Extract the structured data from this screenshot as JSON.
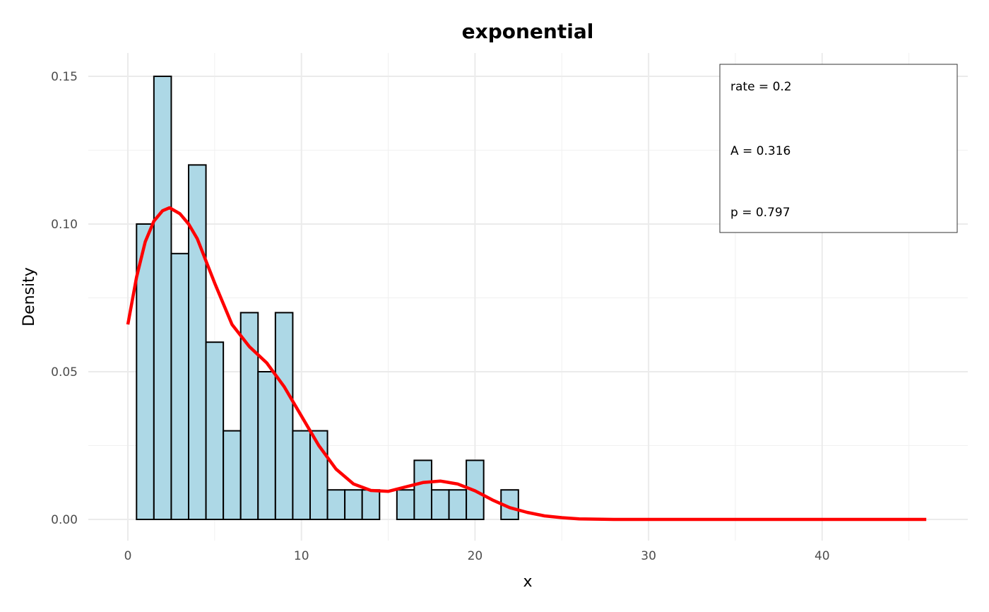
{
  "chart_data": {
    "type": "bar",
    "title": "exponential",
    "xlabel": "x",
    "ylabel": "Density",
    "xlim": [
      -2.3,
      48.3
    ],
    "ylim": [
      -0.0072,
      0.1575
    ],
    "x_ticks": [
      0,
      10,
      20,
      30,
      40
    ],
    "x_tick_labels": [
      "0",
      "10",
      "20",
      "30",
      "40"
    ],
    "y_ticks": [
      0,
      0.05,
      0.1,
      0.15
    ],
    "y_tick_labels": [
      "0.00",
      "0.05",
      "0.10",
      "0.15"
    ],
    "grid": true,
    "histogram": {
      "bin_width": 1,
      "bin_centers": [
        1,
        2,
        3,
        4,
        5,
        6,
        7,
        8,
        9,
        10,
        11,
        12,
        13,
        14,
        15,
        16,
        17,
        18,
        19,
        20,
        21,
        22
      ],
      "values": [
        0.1,
        0.15,
        0.09,
        0.12,
        0.06,
        0.03,
        0.07,
        0.05,
        0.07,
        0.03,
        0.03,
        0.01,
        0.01,
        0.01,
        0,
        0.01,
        0.02,
        0.01,
        0.01,
        0.02,
        0,
        0.01
      ],
      "fill": "#add8e6",
      "edge": "#000000"
    },
    "density_curve": {
      "color": "#ff0000",
      "x": [
        0,
        0.5,
        1,
        1.5,
        2,
        2.4,
        3,
        3.5,
        4,
        5,
        6,
        7,
        8,
        9,
        10,
        11,
        12,
        13,
        14,
        15,
        16,
        17,
        18,
        19,
        20,
        21,
        22,
        23,
        24,
        25,
        26,
        27,
        28,
        30,
        35,
        40,
        46
      ],
      "y": [
        0.066,
        0.082,
        0.094,
        0.101,
        0.1045,
        0.1055,
        0.1035,
        0.1,
        0.095,
        0.08,
        0.066,
        0.0585,
        0.053,
        0.045,
        0.035,
        0.025,
        0.017,
        0.012,
        0.0098,
        0.0095,
        0.011,
        0.0125,
        0.013,
        0.012,
        0.0097,
        0.0066,
        0.004,
        0.0024,
        0.0012,
        0.0006,
        0.0002,
        0.0001,
        0,
        0,
        0,
        0,
        0
      ]
    },
    "legend": {
      "placement": "top-right",
      "entries": [
        "rate = 0.2",
        "A = 0.316",
        "p = 0.797"
      ]
    }
  }
}
